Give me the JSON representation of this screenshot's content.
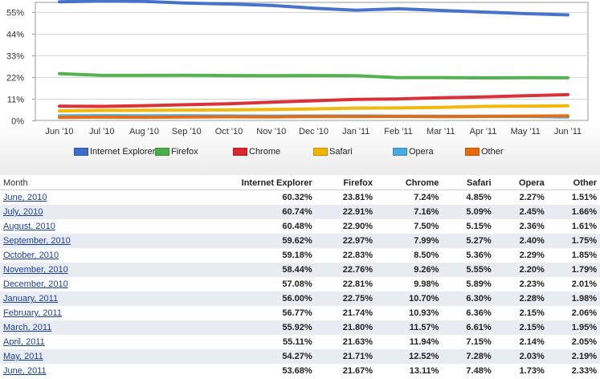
{
  "chart_data": {
    "type": "line",
    "categories": [
      "Jun '10",
      "Jul '10",
      "Aug '10",
      "Sep '10",
      "Oct '10",
      "Nov '10",
      "Dec '10",
      "Jan '11",
      "Feb '11",
      "Mar '11",
      "Apr '11",
      "May '11",
      "Jun '11"
    ],
    "y_ticks": [
      "55%",
      "44%",
      "33%",
      "22%",
      "11%",
      "0%"
    ],
    "ylim": [
      0,
      60
    ],
    "grid": true,
    "legend_position": "bottom",
    "series": [
      {
        "name": "Internet Explorer",
        "color": "#3d6cc9",
        "values": [
          60.32,
          60.74,
          60.48,
          59.62,
          59.18,
          58.44,
          57.08,
          56.0,
          56.77,
          55.92,
          55.11,
          54.27,
          53.68
        ]
      },
      {
        "name": "Firefox",
        "color": "#4cae48",
        "values": [
          23.81,
          22.91,
          22.9,
          22.97,
          22.83,
          22.76,
          22.81,
          22.75,
          21.74,
          21.8,
          21.63,
          21.71,
          21.67
        ]
      },
      {
        "name": "Chrome",
        "color": "#d9272e",
        "values": [
          7.24,
          7.16,
          7.5,
          7.99,
          8.5,
          9.26,
          9.98,
          10.7,
          10.93,
          11.57,
          11.94,
          12.52,
          13.11
        ]
      },
      {
        "name": "Safari",
        "color": "#f0b400",
        "values": [
          4.85,
          5.09,
          5.15,
          5.27,
          5.36,
          5.55,
          5.89,
          6.3,
          6.36,
          6.61,
          7.15,
          7.28,
          7.48
        ]
      },
      {
        "name": "Opera",
        "color": "#4aa9e0",
        "values": [
          2.27,
          2.45,
          2.36,
          2.4,
          2.29,
          2.2,
          2.23,
          2.28,
          2.15,
          2.15,
          2.14,
          2.03,
          1.73
        ]
      },
      {
        "name": "Other",
        "color": "#e8690e",
        "values": [
          1.51,
          1.66,
          1.61,
          1.75,
          1.85,
          1.79,
          2.01,
          1.98,
          2.06,
          1.95,
          2.05,
          2.19,
          2.33
        ]
      }
    ]
  },
  "table": {
    "headers": [
      "Month",
      "Internet Explorer",
      "Firefox",
      "Chrome",
      "Safari",
      "Opera",
      "Other"
    ],
    "rows": [
      [
        "June, 2010",
        "60.32%",
        "23.81%",
        "7.24%",
        "4.85%",
        "2.27%",
        "1.51%"
      ],
      [
        "July, 2010",
        "60.74%",
        "22.91%",
        "7.16%",
        "5.09%",
        "2.45%",
        "1.66%"
      ],
      [
        "August, 2010",
        "60.48%",
        "22.90%",
        "7.50%",
        "5.15%",
        "2.36%",
        "1.61%"
      ],
      [
        "September, 2010",
        "59.62%",
        "22.97%",
        "7.99%",
        "5.27%",
        "2.40%",
        "1.75%"
      ],
      [
        "October, 2010",
        "59.18%",
        "22.83%",
        "8.50%",
        "5.36%",
        "2.29%",
        "1.85%"
      ],
      [
        "November, 2010",
        "58.44%",
        "22.76%",
        "9.26%",
        "5.55%",
        "2.20%",
        "1.79%"
      ],
      [
        "December, 2010",
        "57.08%",
        "22.81%",
        "9.98%",
        "5.89%",
        "2.23%",
        "2.01%"
      ],
      [
        "January, 2011",
        "56.00%",
        "22.75%",
        "10.70%",
        "6.30%",
        "2.28%",
        "1.98%"
      ],
      [
        "February, 2011",
        "56.77%",
        "21.74%",
        "10.93%",
        "6.36%",
        "2.15%",
        "2.06%"
      ],
      [
        "March, 2011",
        "55.92%",
        "21.80%",
        "11.57%",
        "6.61%",
        "2.15%",
        "1.95%"
      ],
      [
        "April, 2011",
        "55.11%",
        "21.63%",
        "11.94%",
        "7.15%",
        "2.14%",
        "2.05%"
      ],
      [
        "May, 2011",
        "54.27%",
        "21.71%",
        "12.52%",
        "7.28%",
        "2.03%",
        "2.19%"
      ],
      [
        "June, 2011",
        "53.68%",
        "21.67%",
        "13.11%",
        "7.48%",
        "1.73%",
        "2.33%"
      ]
    ]
  }
}
